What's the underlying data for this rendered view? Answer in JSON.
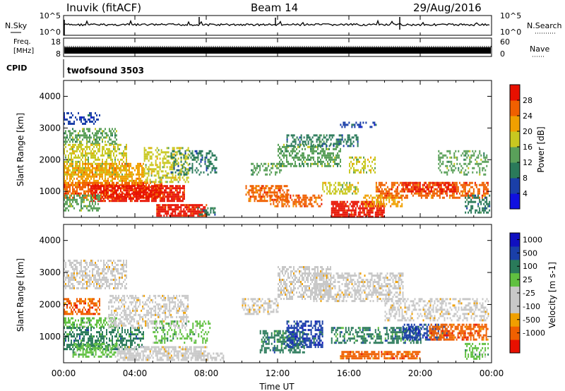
{
  "header": {
    "station": "Inuvik (fitACF)",
    "beam": "Beam 14",
    "date": "29/Aug/2016"
  },
  "nsky_panel": {
    "left_label": "N.Sky",
    "left_ticks": [
      "10^5",
      "10^0"
    ],
    "right_label": "N.Search",
    "right_ticks": [
      "10^5",
      "10^0"
    ]
  },
  "freq_panel": {
    "left_label_line1": "Freq.",
    "left_label_line2": "[MHz]",
    "left_ticks": [
      "18",
      "8"
    ],
    "right_label": "Nave",
    "right_ticks": [
      "60",
      "0"
    ]
  },
  "cpid_panel": {
    "label": "CPID",
    "value": "twofsound 3503"
  },
  "x_axis": {
    "title": "Time UT",
    "ticks": [
      "00:00",
      "04:00",
      "08:00",
      "12:00",
      "16:00",
      "20:00",
      "00:00"
    ]
  },
  "colors": {
    "power_scale": [
      "#1010e0",
      "#1a3fa8",
      "#2a7a5a",
      "#5aa05a",
      "#c8c820",
      "#f0a000",
      "#f06000",
      "#e81000"
    ],
    "velocity_scale": [
      "#e81000",
      "#f06000",
      "#f0a000",
      "#c8c8c8",
      "#c8c8c8",
      "#60c040",
      "#2a7a5a",
      "#1a3fa8",
      "#1010c0"
    ]
  },
  "chart_data": [
    {
      "type": "heatmap",
      "panel": "power",
      "ylabel": "Slant Range [km]",
      "yticks": [
        "1000",
        "2000",
        "3000",
        "4000"
      ],
      "ylim": [
        180,
        4500
      ],
      "xlim_hours": [
        0,
        24
      ],
      "colorbar_label": "Power [dB]",
      "colorbar_ticks": [
        "4",
        "8",
        "12",
        "16",
        "20",
        "24",
        "28"
      ],
      "colorbar_range": [
        0,
        32
      ]
    },
    {
      "type": "heatmap",
      "panel": "velocity",
      "ylabel": "Slant Range [km]",
      "yticks": [
        "1000",
        "2000",
        "3000",
        "4000"
      ],
      "ylim": [
        180,
        4500
      ],
      "xlim_hours": [
        0,
        24
      ],
      "colorbar_label": "Velocity [m s-1]",
      "colorbar_ticks": [
        "1000",
        "500",
        "100",
        "25",
        "-25",
        "-100",
        "-500",
        "-1000"
      ]
    }
  ]
}
